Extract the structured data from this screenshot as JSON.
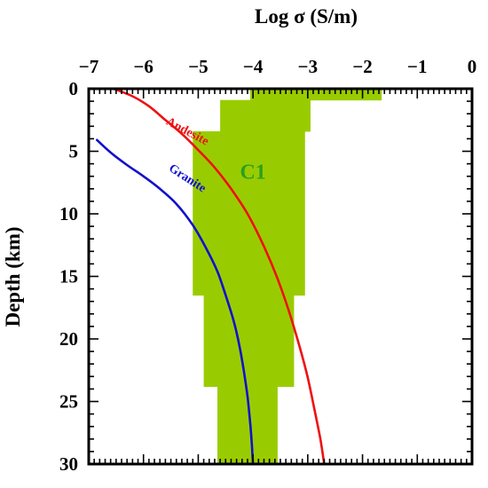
{
  "chart_data": {
    "type": "area",
    "xlabel": "Log σ (S/m)",
    "ylabel": "Depth (km)",
    "x_axis_position": "top",
    "xlim": [
      -7,
      0
    ],
    "ylim": [
      0,
      30
    ],
    "y_inverted": true,
    "grid": false,
    "x_ticks": [
      -7,
      -6,
      -5,
      -4,
      -3,
      -2,
      -1,
      0
    ],
    "x_tick_labels": [
      "−7",
      "−6",
      "−5",
      "−4",
      "−3",
      "−2",
      "−1",
      "0"
    ],
    "y_ticks": [
      0,
      5,
      10,
      15,
      20,
      25,
      30
    ],
    "y_tick_labels": [
      "0",
      "5",
      "10",
      "15",
      "20",
      "25",
      "30"
    ],
    "region": {
      "name": "C1",
      "color": "#99cc00",
      "label_color": "#2e9e1f",
      "label_position": {
        "log_sigma": -4.0,
        "depth_km": 7.2
      },
      "steps": [
        {
          "depth_top": 0.0,
          "depth_bottom": 0.9,
          "log_sigma_min": -4.05,
          "log_sigma_max": -1.65
        },
        {
          "depth_top": 0.9,
          "depth_bottom": 3.4,
          "log_sigma_min": -4.6,
          "log_sigma_max": -2.95
        },
        {
          "depth_top": 3.4,
          "depth_bottom": 16.5,
          "log_sigma_min": -5.1,
          "log_sigma_max": -3.05
        },
        {
          "depth_top": 16.5,
          "depth_bottom": 23.8,
          "log_sigma_min": -4.9,
          "log_sigma_max": -3.25
        },
        {
          "depth_top": 23.8,
          "depth_bottom": 30.0,
          "log_sigma_min": -4.65,
          "log_sigma_max": -3.55
        }
      ]
    },
    "series": [
      {
        "name": "Andesite",
        "color": "#ee1111",
        "label_position": {
          "log_sigma": -5.6,
          "depth_km": 2.8
        },
        "points": [
          [
            -6.55,
            0.0
          ],
          [
            -6.2,
            0.6
          ],
          [
            -5.9,
            1.4
          ],
          [
            -5.6,
            2.5
          ],
          [
            -5.3,
            3.6
          ],
          [
            -5.0,
            4.9
          ],
          [
            -4.7,
            6.3
          ],
          [
            -4.4,
            8.0
          ],
          [
            -4.1,
            10.0
          ],
          [
            -3.8,
            12.6
          ],
          [
            -3.55,
            15.2
          ],
          [
            -3.35,
            17.7
          ],
          [
            -3.15,
            20.6
          ],
          [
            -3.0,
            23.1
          ],
          [
            -2.87,
            25.8
          ],
          [
            -2.77,
            28.0
          ],
          [
            -2.7,
            30.0
          ]
        ]
      },
      {
        "name": "Granite",
        "color": "#1111cc",
        "label_position": {
          "log_sigma": -5.55,
          "depth_km": 6.5
        },
        "points": [
          [
            -6.85,
            4.1
          ],
          [
            -6.6,
            5.1
          ],
          [
            -6.3,
            6.1
          ],
          [
            -6.0,
            7.0
          ],
          [
            -5.7,
            8.0
          ],
          [
            -5.4,
            9.2
          ],
          [
            -5.1,
            10.9
          ],
          [
            -4.85,
            12.8
          ],
          [
            -4.65,
            14.6
          ],
          [
            -4.5,
            16.5
          ],
          [
            -4.35,
            18.6
          ],
          [
            -4.25,
            20.5
          ],
          [
            -4.17,
            22.5
          ],
          [
            -4.1,
            24.6
          ],
          [
            -4.05,
            26.8
          ],
          [
            -4.02,
            28.5
          ],
          [
            -4.0,
            30.0
          ]
        ]
      }
    ]
  }
}
